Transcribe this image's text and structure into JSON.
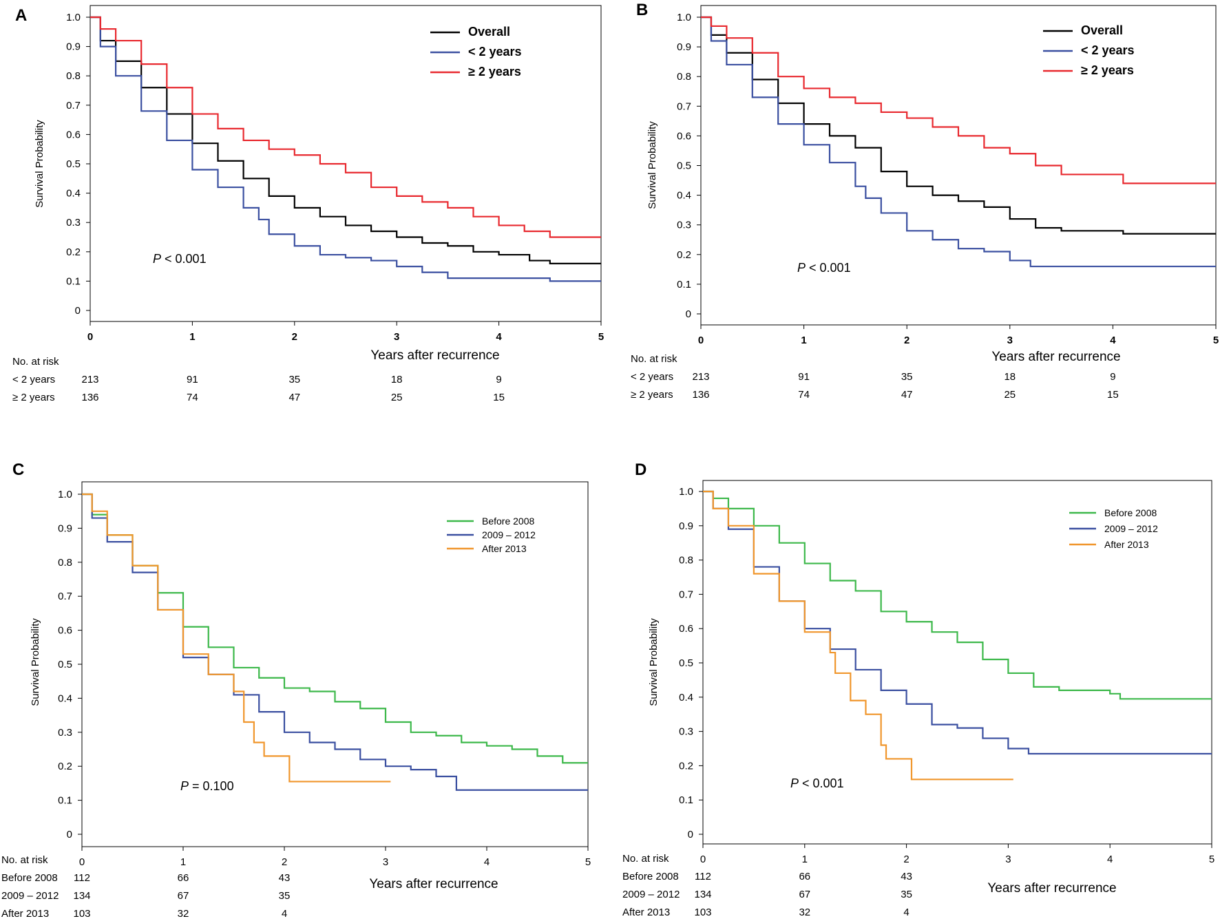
{
  "chart_data": [
    {
      "panel": "A",
      "type": "line",
      "subtype": "kaplan-meier",
      "xlabel": "Years after recurrence",
      "ylabel": "Survival Probability",
      "xlim": [
        0,
        5
      ],
      "ylim": [
        0,
        1
      ],
      "xticks": [
        "0",
        "1",
        "2",
        "3",
        "4",
        "5"
      ],
      "yticks": [
        "0",
        "0.1",
        "0.2",
        "0.3",
        "0.4",
        "0.5",
        "0.6",
        "0.7",
        "0.8",
        "0.9",
        "1.0"
      ],
      "legend_position": "top-right",
      "annotation_italic": "P",
      "annotation_rest": " < 0.001",
      "series": [
        {
          "name": "Overall",
          "color": "#000000",
          "x": [
            0,
            0.1,
            0.25,
            0.5,
            0.75,
            1.0,
            1.25,
            1.5,
            1.75,
            2.0,
            2.25,
            2.5,
            2.75,
            3.0,
            3.25,
            3.5,
            3.75,
            4.0,
            4.3,
            4.5,
            5.0
          ],
          "y": [
            1.0,
            0.92,
            0.85,
            0.76,
            0.67,
            0.57,
            0.51,
            0.45,
            0.39,
            0.35,
            0.32,
            0.29,
            0.27,
            0.25,
            0.23,
            0.22,
            0.2,
            0.19,
            0.17,
            0.16,
            0.16
          ]
        },
        {
          "name": "< 2 years",
          "color": "#3a4fa0",
          "x": [
            0,
            0.1,
            0.25,
            0.5,
            0.75,
            1.0,
            1.25,
            1.5,
            1.65,
            1.75,
            2.0,
            2.25,
            2.5,
            2.75,
            3.0,
            3.25,
            3.5,
            4.0,
            4.5,
            5.0
          ],
          "y": [
            1.0,
            0.9,
            0.8,
            0.68,
            0.58,
            0.48,
            0.42,
            0.35,
            0.31,
            0.26,
            0.22,
            0.19,
            0.18,
            0.17,
            0.15,
            0.13,
            0.11,
            0.11,
            0.1,
            0.1
          ]
        },
        {
          "name": "≥ 2 years",
          "color": "#e8282e",
          "x": [
            0,
            0.1,
            0.25,
            0.5,
            0.75,
            1.0,
            1.25,
            1.5,
            1.75,
            2.0,
            2.25,
            2.5,
            2.75,
            3.0,
            3.25,
            3.5,
            3.75,
            4.0,
            4.25,
            4.5,
            5.0
          ],
          "y": [
            1.0,
            0.96,
            0.92,
            0.84,
            0.76,
            0.67,
            0.62,
            0.58,
            0.55,
            0.53,
            0.5,
            0.47,
            0.42,
            0.39,
            0.37,
            0.35,
            0.32,
            0.29,
            0.27,
            0.25,
            0.25
          ]
        }
      ],
      "risk_table": {
        "title": "No. at risk",
        "times": [
          0,
          1,
          2,
          3,
          4
        ],
        "rows": [
          {
            "label": "< 2 years",
            "values": [
              "213",
              "91",
              "35",
              "18",
              "9"
            ]
          },
          {
            "label": "≥ 2 years",
            "values": [
              "136",
              "74",
              "47",
              "25",
              "15"
            ]
          }
        ]
      }
    },
    {
      "panel": "B",
      "type": "line",
      "subtype": "kaplan-meier",
      "xlabel": "Years after recurrence",
      "ylabel": "Survival Probability",
      "xlim": [
        0,
        5
      ],
      "ylim": [
        0,
        1
      ],
      "xticks": [
        "0",
        "1",
        "2",
        "3",
        "4",
        "5"
      ],
      "yticks": [
        "0",
        "0.1",
        "0.2",
        "0.3",
        "0.4",
        "0.5",
        "0.6",
        "0.7",
        "0.8",
        "0.9",
        "1.0"
      ],
      "legend_position": "top-right",
      "annotation_italic": "P",
      "annotation_rest": " < 0.001",
      "series": [
        {
          "name": "Overall",
          "color": "#000000",
          "x": [
            0,
            0.1,
            0.25,
            0.5,
            0.75,
            1.0,
            1.25,
            1.5,
            1.75,
            2.0,
            2.25,
            2.5,
            2.75,
            3.0,
            3.25,
            3.5,
            4.0,
            4.1,
            5.0
          ],
          "y": [
            1.0,
            0.94,
            0.88,
            0.79,
            0.71,
            0.64,
            0.6,
            0.56,
            0.48,
            0.43,
            0.4,
            0.38,
            0.36,
            0.32,
            0.29,
            0.28,
            0.28,
            0.27,
            0.27
          ]
        },
        {
          "name": "< 2 years",
          "color": "#3a4fa0",
          "x": [
            0,
            0.1,
            0.25,
            0.5,
            0.75,
            1.0,
            1.25,
            1.5,
            1.6,
            1.75,
            2.0,
            2.25,
            2.5,
            2.75,
            3.0,
            3.2,
            5.0
          ],
          "y": [
            1.0,
            0.92,
            0.84,
            0.73,
            0.64,
            0.57,
            0.51,
            0.43,
            0.39,
            0.34,
            0.28,
            0.25,
            0.22,
            0.21,
            0.18,
            0.16,
            0.16
          ]
        },
        {
          "name": "≥ 2 years",
          "color": "#e8282e",
          "x": [
            0,
            0.1,
            0.25,
            0.5,
            0.75,
            1.0,
            1.25,
            1.5,
            1.75,
            2.0,
            2.25,
            2.5,
            2.75,
            3.0,
            3.25,
            3.5,
            4.1,
            5.0
          ],
          "y": [
            1.0,
            0.97,
            0.93,
            0.88,
            0.8,
            0.76,
            0.73,
            0.71,
            0.68,
            0.66,
            0.63,
            0.6,
            0.56,
            0.54,
            0.5,
            0.47,
            0.44,
            0.44
          ]
        }
      ],
      "risk_table": {
        "title": "No. at risk",
        "times": [
          0,
          1,
          2,
          3,
          4
        ],
        "rows": [
          {
            "label": "< 2 years",
            "values": [
              "213",
              "91",
              "35",
              "18",
              "9"
            ]
          },
          {
            "label": "≥ 2 years",
            "values": [
              "136",
              "74",
              "47",
              "25",
              "15"
            ]
          }
        ]
      }
    },
    {
      "panel": "C",
      "type": "line",
      "subtype": "kaplan-meier",
      "xlabel": "Years after recurrence",
      "ylabel": "Survival Probability",
      "xlim": [
        0,
        5
      ],
      "ylim": [
        0,
        1
      ],
      "xticks": [
        "0",
        "1",
        "2",
        "3",
        "4",
        "5"
      ],
      "yticks": [
        "0",
        "0.1",
        "0.2",
        "0.3",
        "0.4",
        "0.5",
        "0.6",
        "0.7",
        "0.8",
        "0.9",
        "1.0"
      ],
      "legend_position": "top-right",
      "annotation_italic": "P",
      "annotation_rest": " = 0.100",
      "series": [
        {
          "name": "Before 2008",
          "color": "#3cb84a",
          "x": [
            0,
            0.1,
            0.25,
            0.5,
            0.75,
            1.0,
            1.25,
            1.5,
            1.75,
            2.0,
            2.25,
            2.5,
            2.75,
            3.0,
            3.25,
            3.5,
            3.75,
            4.0,
            4.25,
            4.5,
            4.75,
            5.0
          ],
          "y": [
            1.0,
            0.94,
            0.88,
            0.79,
            0.71,
            0.61,
            0.55,
            0.49,
            0.46,
            0.43,
            0.42,
            0.39,
            0.37,
            0.33,
            0.3,
            0.29,
            0.27,
            0.26,
            0.25,
            0.23,
            0.21,
            0.21
          ]
        },
        {
          "name": "2009 – 2012",
          "color": "#3a4fa0",
          "x": [
            0,
            0.1,
            0.25,
            0.5,
            0.75,
            1.0,
            1.25,
            1.5,
            1.75,
            2.0,
            2.25,
            2.5,
            2.75,
            3.0,
            3.25,
            3.5,
            3.7,
            5.0
          ],
          "y": [
            1.0,
            0.93,
            0.86,
            0.77,
            0.66,
            0.52,
            0.47,
            0.41,
            0.36,
            0.3,
            0.27,
            0.25,
            0.22,
            0.2,
            0.19,
            0.17,
            0.13,
            0.13
          ]
        },
        {
          "name": "After 2013",
          "color": "#f0962c",
          "x": [
            0,
            0.1,
            0.25,
            0.5,
            0.75,
            1.0,
            1.25,
            1.5,
            1.6,
            1.7,
            1.8,
            2.05,
            3.05
          ],
          "y": [
            1.0,
            0.95,
            0.88,
            0.79,
            0.66,
            0.53,
            0.47,
            0.42,
            0.33,
            0.27,
            0.23,
            0.155,
            0.155
          ]
        }
      ],
      "risk_table": {
        "title": "No. at risk",
        "times": [
          0,
          1,
          2
        ],
        "rows": [
          {
            "label": "Before 2008",
            "values": [
              "112",
              "66",
              "43"
            ]
          },
          {
            "label": "2009 – 2012",
            "values": [
              "134",
              "67",
              "35"
            ]
          },
          {
            "label": "After 2013",
            "values": [
              "103",
              "32",
              "4"
            ]
          }
        ]
      }
    },
    {
      "panel": "D",
      "type": "line",
      "subtype": "kaplan-meier",
      "xlabel": "Years after recurrence",
      "ylabel": "Survival Probability",
      "xlim": [
        0,
        5
      ],
      "ylim": [
        0,
        1
      ],
      "xticks": [
        "0",
        "1",
        "2",
        "3",
        "4",
        "5"
      ],
      "yticks": [
        "0",
        "0.1",
        "0.2",
        "0.3",
        "0.4",
        "0.5",
        "0.6",
        "0.7",
        "0.8",
        "0.9",
        "1.0"
      ],
      "legend_position": "top-right",
      "annotation_italic": "P",
      "annotation_rest": " < 0.001",
      "series": [
        {
          "name": "Before 2008",
          "color": "#3cb84a",
          "x": [
            0,
            0.1,
            0.25,
            0.5,
            0.75,
            1.0,
            1.25,
            1.5,
            1.75,
            2.0,
            2.25,
            2.5,
            2.75,
            3.0,
            3.25,
            3.5,
            4.0,
            4.1,
            5.0
          ],
          "y": [
            1.0,
            0.98,
            0.95,
            0.9,
            0.85,
            0.79,
            0.74,
            0.71,
            0.65,
            0.62,
            0.59,
            0.56,
            0.51,
            0.47,
            0.43,
            0.42,
            0.41,
            0.395,
            0.395
          ]
        },
        {
          "name": "2009 – 2012",
          "color": "#3a4fa0",
          "x": [
            0,
            0.1,
            0.25,
            0.5,
            0.75,
            1.0,
            1.25,
            1.5,
            1.75,
            2.0,
            2.25,
            2.5,
            2.75,
            3.0,
            3.2,
            5.0
          ],
          "y": [
            1.0,
            0.95,
            0.89,
            0.78,
            0.68,
            0.6,
            0.54,
            0.48,
            0.42,
            0.38,
            0.32,
            0.31,
            0.28,
            0.25,
            0.235,
            0.235
          ]
        },
        {
          "name": "After 2013",
          "color": "#f0962c",
          "x": [
            0,
            0.1,
            0.25,
            0.5,
            0.75,
            1.0,
            1.25,
            1.3,
            1.45,
            1.6,
            1.75,
            1.8,
            2.05,
            3.05
          ],
          "y": [
            1.0,
            0.95,
            0.9,
            0.76,
            0.68,
            0.59,
            0.53,
            0.47,
            0.39,
            0.35,
            0.26,
            0.22,
            0.16,
            0.16
          ]
        }
      ],
      "risk_table": {
        "title": "No. at risk",
        "times": [
          0,
          1,
          2
        ],
        "rows": [
          {
            "label": "Before 2008",
            "values": [
              "112",
              "66",
              "43"
            ]
          },
          {
            "label": "2009 – 2012",
            "values": [
              "134",
              "67",
              "35"
            ]
          },
          {
            "label": "After 2013",
            "values": [
              "103",
              "32",
              "4"
            ]
          }
        ]
      }
    }
  ]
}
